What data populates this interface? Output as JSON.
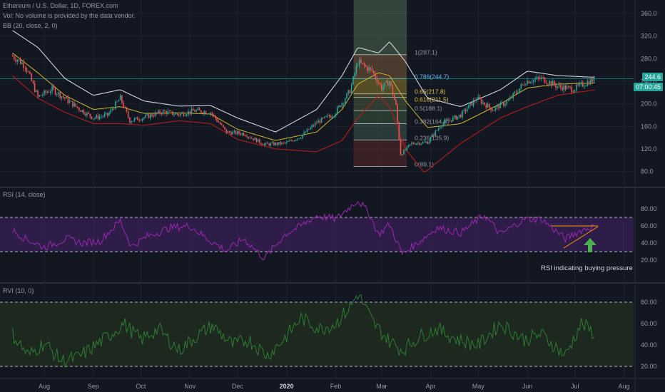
{
  "legends": {
    "main_title": "Ethereum / U.S. Dollar, 1D, FOREX.com",
    "vol_note": "Vol: No volume is provided by the data vendor.",
    "bb_label": "BB (20, close, 2, 0)",
    "rsi_label": "RSI (14, close)",
    "rvi_label": "RVI (10, 0)"
  },
  "tags": {
    "last_price": "244.6",
    "countdown": "07:00:45"
  },
  "annotation": "RSI indicating buying pressure",
  "colors": {
    "candle_up": "#26a69a",
    "candle_down": "#ef5350",
    "bb_upper_lower_bright": "#d1d4dc",
    "bb_lower": "#b71c1c",
    "bb_basis": "#c8b72d",
    "rsi_line": "#9c27b0",
    "rvi_line": "#2e7d32",
    "annotation_arrow": "#4caf50",
    "trend_lines": "#ff9800",
    "last_price": "#26a69a"
  },
  "chart_data": [
    {
      "type": "candlestick",
      "panel": "price",
      "title": "Ethereum / U.S. Dollar, 1D, FOREX.com",
      "ylim": [
        70,
        370
      ],
      "yticks": [
        80.0,
        120.0,
        160.0,
        200.0,
        240.0,
        280.0,
        320.0,
        360.0
      ],
      "x_ticks": [
        "Aug",
        "Sep",
        "Oct",
        "Nov",
        "Dec",
        "2020",
        "Feb",
        "Mar",
        "Apr",
        "May",
        "Jun",
        "Jul",
        "Aug"
      ],
      "close_path_approx": [
        [
          "2019-07-12",
          285
        ],
        [
          "2019-07-20",
          268
        ],
        [
          "2019-07-28",
          212
        ],
        [
          "2019-08-06",
          226
        ],
        [
          "2019-08-14",
          210
        ],
        [
          "2019-08-22",
          193
        ],
        [
          "2019-09-01",
          175
        ],
        [
          "2019-09-10",
          180
        ],
        [
          "2019-09-18",
          210
        ],
        [
          "2019-09-24",
          170
        ],
        [
          "2019-10-03",
          176
        ],
        [
          "2019-10-15",
          186
        ],
        [
          "2019-10-25",
          181
        ],
        [
          "2019-11-04",
          188
        ],
        [
          "2019-11-14",
          185
        ],
        [
          "2019-11-24",
          150
        ],
        [
          "2019-12-05",
          147
        ],
        [
          "2019-12-18",
          128
        ],
        [
          "2019-12-31",
          130
        ],
        [
          "2020-01-10",
          142
        ],
        [
          "2020-01-20",
          167
        ],
        [
          "2020-01-31",
          182
        ],
        [
          "2020-02-10",
          223
        ],
        [
          "2020-02-15",
          274
        ],
        [
          "2020-02-24",
          258
        ],
        [
          "2020-03-01",
          228
        ],
        [
          "2020-03-06",
          240
        ],
        [
          "2020-03-10",
          196
        ],
        [
          "2020-03-13",
          110
        ],
        [
          "2020-03-20",
          130
        ],
        [
          "2020-03-30",
          132
        ],
        [
          "2020-04-08",
          165
        ],
        [
          "2020-04-20",
          180
        ],
        [
          "2020-04-30",
          210
        ],
        [
          "2020-05-10",
          190
        ],
        [
          "2020-05-20",
          205
        ],
        [
          "2020-05-31",
          240
        ],
        [
          "2020-06-10",
          245
        ],
        [
          "2020-06-20",
          231
        ],
        [
          "2020-06-30",
          226
        ],
        [
          "2020-07-10",
          240
        ],
        [
          "2020-07-14",
          244.6
        ]
      ],
      "bollinger_bands": {
        "upper_approx": [
          [
            "2019-07-12",
            330
          ],
          [
            "2019-07-28",
            300
          ],
          [
            "2019-08-14",
            245
          ],
          [
            "2019-09-01",
            215
          ],
          [
            "2019-09-18",
            225
          ],
          [
            "2019-10-03",
            205
          ],
          [
            "2019-10-25",
            196
          ],
          [
            "2019-11-14",
            197
          ],
          [
            "2019-12-01",
            175
          ],
          [
            "2019-12-25",
            150
          ],
          [
            "2020-01-20",
            190
          ],
          [
            "2020-02-05",
            250
          ],
          [
            "2020-02-15",
            300
          ],
          [
            "2020-02-28",
            290
          ],
          [
            "2020-03-06",
            310
          ],
          [
            "2020-03-16",
            275
          ],
          [
            "2020-03-30",
            210
          ],
          [
            "2020-04-20",
            195
          ],
          [
            "2020-05-15",
            225
          ],
          [
            "2020-06-01",
            258
          ],
          [
            "2020-06-20",
            250
          ],
          [
            "2020-07-14",
            247
          ]
        ],
        "basis_approx": [
          [
            "2019-07-12",
            290
          ],
          [
            "2019-07-28",
            255
          ],
          [
            "2019-08-14",
            215
          ],
          [
            "2019-09-01",
            190
          ],
          [
            "2019-09-18",
            195
          ],
          [
            "2019-10-03",
            183
          ],
          [
            "2019-10-25",
            184
          ],
          [
            "2019-11-14",
            182
          ],
          [
            "2019-12-01",
            155
          ],
          [
            "2019-12-25",
            135
          ],
          [
            "2020-01-20",
            150
          ],
          [
            "2020-02-05",
            190
          ],
          [
            "2020-02-15",
            235
          ],
          [
            "2020-02-28",
            255
          ],
          [
            "2020-03-06",
            250
          ],
          [
            "2020-03-16",
            205
          ],
          [
            "2020-03-30",
            158
          ],
          [
            "2020-04-20",
            165
          ],
          [
            "2020-05-15",
            200
          ],
          [
            "2020-06-01",
            228
          ],
          [
            "2020-06-20",
            235
          ],
          [
            "2020-07-14",
            237
          ]
        ],
        "lower_approx": [
          [
            "2019-07-12",
            250
          ],
          [
            "2019-07-28",
            210
          ],
          [
            "2019-08-14",
            185
          ],
          [
            "2019-09-01",
            165
          ],
          [
            "2019-09-18",
            165
          ],
          [
            "2019-10-03",
            162
          ],
          [
            "2019-10-25",
            170
          ],
          [
            "2019-11-14",
            165
          ],
          [
            "2019-12-01",
            137
          ],
          [
            "2019-12-25",
            120
          ],
          [
            "2020-01-20",
            115
          ],
          [
            "2020-02-05",
            135
          ],
          [
            "2020-02-15",
            175
          ],
          [
            "2020-02-28",
            215
          ],
          [
            "2020-03-06",
            195
          ],
          [
            "2020-03-16",
            120
          ],
          [
            "2020-03-28",
            78
          ],
          [
            "2020-04-20",
            130
          ],
          [
            "2020-05-15",
            175
          ],
          [
            "2020-06-01",
            195
          ],
          [
            "2020-06-20",
            215
          ],
          [
            "2020-07-14",
            225
          ]
        ]
      },
      "fibonacci": {
        "x_range": [
          "2020-02-15",
          "2020-03-16"
        ],
        "levels": [
          {
            "label": "1(287.1)",
            "price": 287.1
          },
          {
            "label": "0.786(244.7)",
            "price": 244.7
          },
          {
            "label": "0.65(217.8)",
            "price": 217.8
          },
          {
            "label": "0.618(211.5)",
            "price": 211.5
          },
          {
            "label": "0.5(188.1)",
            "price": 188.1
          },
          {
            "label": "0.382(164.8)",
            "price": 164.8
          },
          {
            "label": "0.236(135.9)",
            "price": 135.9
          },
          {
            "label": "0(89.1)",
            "price": 89.1
          }
        ]
      },
      "last_price": 244.6,
      "countdown": "07:00:45"
    },
    {
      "type": "line",
      "panel": "rsi",
      "label": "RSI (14, close)",
      "ylim": [
        15,
        95
      ],
      "yticks": [
        20.0,
        40.0,
        60.0,
        80.0
      ],
      "bands": [
        30,
        70
      ],
      "values_approx": [
        [
          "2019-07-12",
          55
        ],
        [
          "2019-07-20",
          45
        ],
        [
          "2019-08-01",
          35
        ],
        [
          "2019-08-15",
          45
        ],
        [
          "2019-08-25",
          40
        ],
        [
          "2019-09-05",
          42
        ],
        [
          "2019-09-18",
          66
        ],
        [
          "2019-09-25",
          36
        ],
        [
          "2019-10-05",
          48
        ],
        [
          "2019-10-20",
          58
        ],
        [
          "2019-11-01",
          60
        ],
        [
          "2019-11-12",
          45
        ],
        [
          "2019-11-24",
          31
        ],
        [
          "2019-12-05",
          45
        ],
        [
          "2019-12-18",
          22
        ],
        [
          "2019-12-31",
          50
        ],
        [
          "2020-01-10",
          60
        ],
        [
          "2020-01-20",
          72
        ],
        [
          "2020-02-01",
          68
        ],
        [
          "2020-02-15",
          90
        ],
        [
          "2020-02-22",
          75
        ],
        [
          "2020-02-28",
          50
        ],
        [
          "2020-03-06",
          62
        ],
        [
          "2020-03-14",
          27
        ],
        [
          "2020-03-25",
          42
        ],
        [
          "2020-04-05",
          58
        ],
        [
          "2020-04-20",
          52
        ],
        [
          "2020-05-05",
          73
        ],
        [
          "2020-05-15",
          50
        ],
        [
          "2020-05-30",
          68
        ],
        [
          "2020-06-10",
          68
        ],
        [
          "2020-06-25",
          45
        ],
        [
          "2020-07-05",
          55
        ],
        [
          "2020-07-14",
          60
        ]
      ],
      "annotation": "RSI indicating buying pressure"
    },
    {
      "type": "line",
      "panel": "rvi",
      "label": "RVI (10, 0)",
      "ylim": [
        15,
        92
      ],
      "yticks": [
        20.0,
        40.0,
        60.0,
        80.0
      ],
      "bands": [
        20,
        80
      ],
      "values_approx": [
        [
          "2019-07-12",
          50
        ],
        [
          "2019-07-22",
          30
        ],
        [
          "2019-08-01",
          42
        ],
        [
          "2019-08-12",
          25
        ],
        [
          "2019-08-22",
          28
        ],
        [
          "2019-09-01",
          38
        ],
        [
          "2019-09-12",
          50
        ],
        [
          "2019-09-20",
          60
        ],
        [
          "2019-10-01",
          45
        ],
        [
          "2019-10-12",
          55
        ],
        [
          "2019-10-25",
          35
        ],
        [
          "2019-11-05",
          48
        ],
        [
          "2019-11-15",
          58
        ],
        [
          "2019-11-28",
          40
        ],
        [
          "2019-12-08",
          45
        ],
        [
          "2019-12-20",
          30
        ],
        [
          "2019-12-30",
          45
        ],
        [
          "2020-01-10",
          65
        ],
        [
          "2020-01-22",
          55
        ],
        [
          "2020-02-01",
          60
        ],
        [
          "2020-02-10",
          75
        ],
        [
          "2020-02-15",
          88
        ],
        [
          "2020-02-25",
          60
        ],
        [
          "2020-03-05",
          45
        ],
        [
          "2020-03-14",
          35
        ],
        [
          "2020-03-25",
          48
        ],
        [
          "2020-04-05",
          55
        ],
        [
          "2020-04-18",
          45
        ],
        [
          "2020-05-01",
          40
        ],
        [
          "2020-05-15",
          60
        ],
        [
          "2020-05-30",
          45
        ],
        [
          "2020-06-10",
          50
        ],
        [
          "2020-06-25",
          30
        ],
        [
          "2020-07-05",
          60
        ],
        [
          "2020-07-14",
          50
        ]
      ]
    }
  ]
}
